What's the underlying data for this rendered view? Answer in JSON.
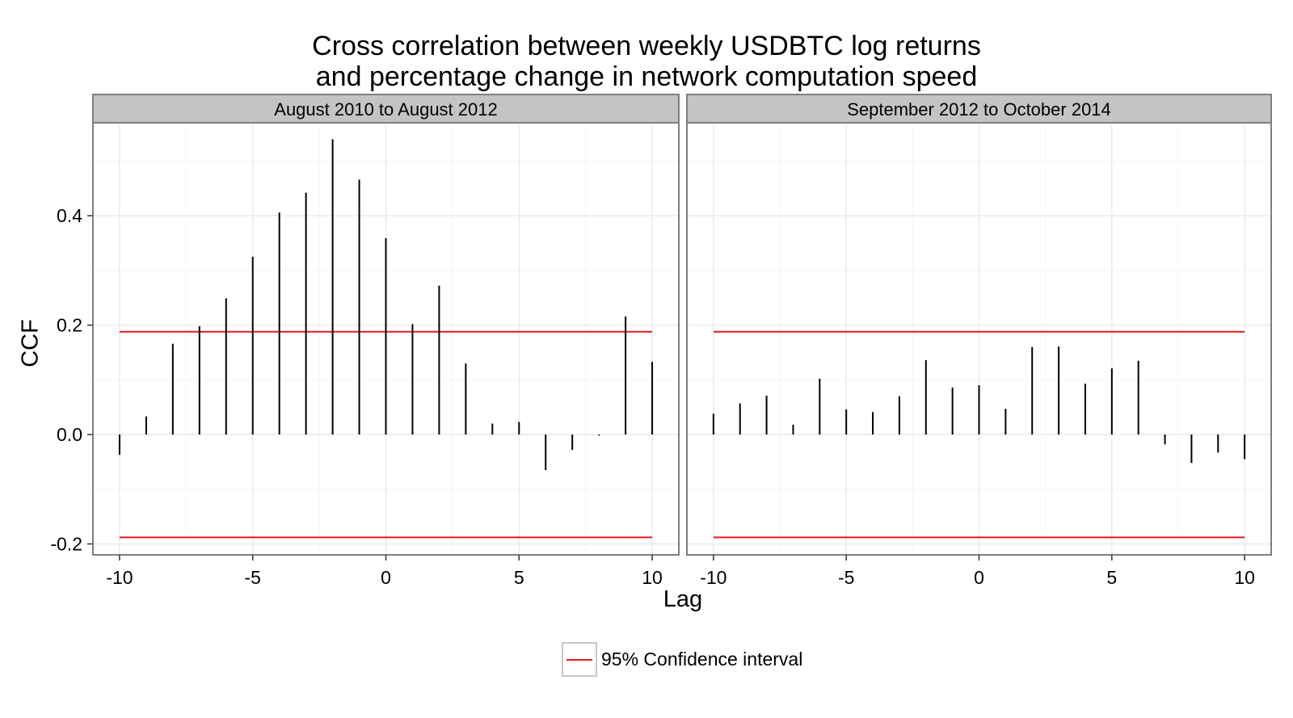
{
  "title_lines": [
    "Cross correlation between weekly USDBTC log returns",
    "and percentage change in network computation speed"
  ],
  "ylabel": "CCF",
  "xlabel": "Lag",
  "legend": {
    "label": "95% Confidence interval",
    "color": "#e41a1c"
  },
  "colors": {
    "strip_fill": "#c4c4c4",
    "panel_border": "#7f7f7f",
    "grid": "#ebebeb",
    "bar": "#000000",
    "ci": "#e41a1c"
  },
  "chart_data": {
    "type": "bar",
    "xlim": [
      -11,
      11
    ],
    "ylim": [
      -0.22,
      0.57
    ],
    "x_ticks": [
      -10,
      -5,
      0,
      5,
      10
    ],
    "x_tick_labels": [
      "-10",
      "-5",
      "0",
      "5",
      "10"
    ],
    "y_ticks": [
      -0.2,
      0.0,
      0.2,
      0.4
    ],
    "y_tick_labels": [
      "-0.2",
      "0.0",
      "0.2",
      "0.4"
    ],
    "confidence_interval": [
      -0.188,
      0.188
    ],
    "panels": [
      {
        "label": "August 2010 to August 2012",
        "lags": [
          -10,
          -9,
          -8,
          -7,
          -6,
          -5,
          -4,
          -3,
          -2,
          -1,
          0,
          1,
          2,
          3,
          4,
          5,
          6,
          7,
          8,
          9,
          10
        ],
        "values": [
          -0.037,
          0.033,
          0.166,
          0.198,
          0.249,
          0.325,
          0.406,
          0.442,
          0.54,
          0.466,
          0.359,
          0.202,
          0.272,
          0.13,
          0.02,
          0.023,
          -0.065,
          -0.028,
          -0.002,
          0.216,
          0.133
        ]
      },
      {
        "label": "September 2012 to October 2014",
        "lags": [
          -10,
          -9,
          -8,
          -7,
          -6,
          -5,
          -4,
          -3,
          -2,
          -1,
          0,
          1,
          2,
          3,
          4,
          5,
          6,
          7,
          8,
          9,
          10
        ],
        "values": [
          0.038,
          0.057,
          0.071,
          0.018,
          0.102,
          0.046,
          0.041,
          0.07,
          0.136,
          0.086,
          0.09,
          0.047,
          0.16,
          0.161,
          0.093,
          0.121,
          0.135,
          -0.018,
          -0.052,
          -0.033,
          -0.045
        ]
      }
    ]
  }
}
